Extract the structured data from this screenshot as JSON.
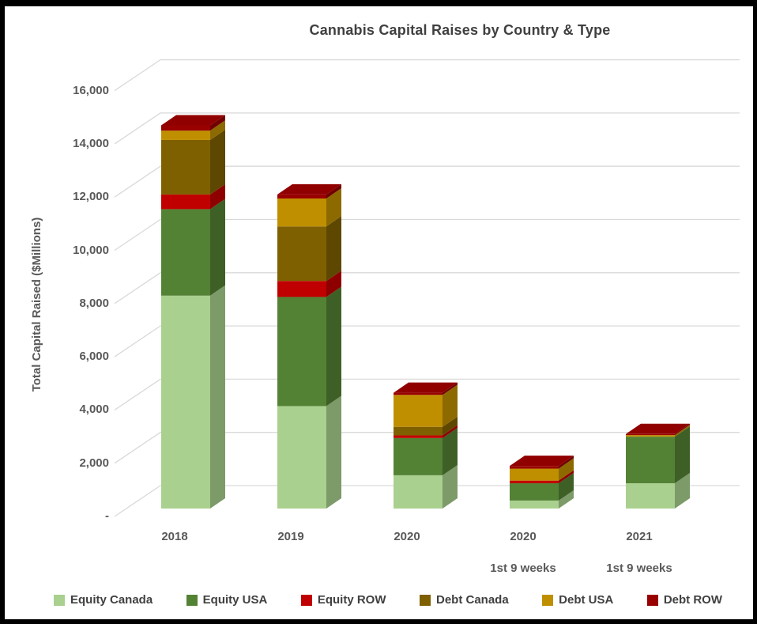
{
  "chart": {
    "title": "Cannabis Capital Raises by Country & Type",
    "y_axis_label": "Total Capital Raised ($Millions)"
  },
  "chart_data": {
    "type": "bar",
    "stacked": true,
    "style": "3d-column",
    "title": "Cannabis Capital Raises by Country & Type",
    "xlabel": "",
    "ylabel": "Total Capital Raised ($Millions)",
    "ylim": [
      0,
      16000
    ],
    "ytick_step": 2000,
    "y_tick_labels": [
      "16,000",
      "14,000",
      "12,000",
      "10,000",
      "8,000",
      "6,000",
      "4,000",
      "2,000",
      "-"
    ],
    "gridlines": true,
    "legend_position": "bottom",
    "categories": [
      "2018",
      "2019",
      "2020",
      "2020",
      "2021"
    ],
    "categories_line2": [
      "",
      "",
      "",
      "1st 9 weeks",
      "1st 9 weeks"
    ],
    "series": [
      {
        "name": "Equity Canada",
        "color": "#A9D08E",
        "values": [
          8000,
          3850,
          1250,
          300,
          950
        ]
      },
      {
        "name": "Equity USA",
        "color": "#548235",
        "values": [
          3250,
          4100,
          1400,
          650,
          1750
        ]
      },
      {
        "name": "Equity ROW",
        "color": "#C00000",
        "values": [
          550,
          600,
          100,
          100,
          0
        ]
      },
      {
        "name": "Debt Canada",
        "color": "#7F6000",
        "values": [
          2050,
          2050,
          320,
          0,
          0
        ]
      },
      {
        "name": "Debt USA",
        "color": "#BF8F00",
        "values": [
          350,
          1050,
          1200,
          450,
          60
        ]
      },
      {
        "name": "Debt ROW",
        "color": "#990000",
        "values": [
          200,
          150,
          80,
          100,
          40
        ]
      }
    ],
    "totals": [
      14400,
      11800,
      4350,
      1600,
      2800
    ],
    "colors": {
      "grid": "#D9D9D9",
      "title_text": "#404040",
      "axis_text": "#595959",
      "legend_text": "#404040"
    }
  }
}
